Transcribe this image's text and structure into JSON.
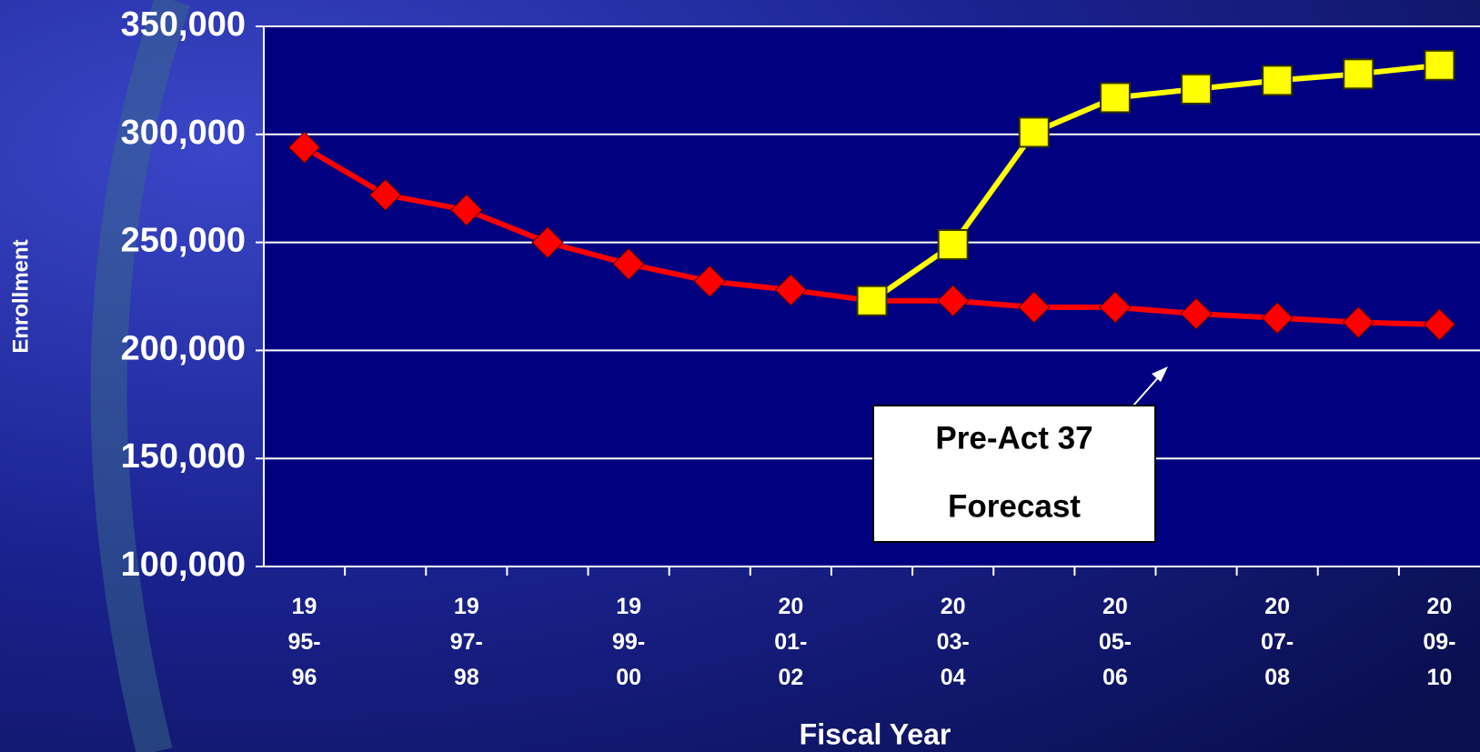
{
  "chart_data": {
    "type": "line",
    "y_label": "Enrollment",
    "x_label": "Fiscal Year",
    "categories": [
      "19\n95-\n96",
      null,
      "19\n97-\n98",
      null,
      "19\n99-\n00",
      null,
      "20\n01-\n02",
      null,
      "20\n03-\n04",
      null,
      "20\n05-\n06",
      null,
      "20\n07-\n08",
      null,
      "20\n09-\n10"
    ],
    "series": [
      {
        "color": "#ff0000",
        "marker": "diamond",
        "values": [
          294000,
          272000,
          265000,
          250000,
          240000,
          232000,
          228000,
          223000,
          223000,
          220000,
          220000,
          217000,
          215000,
          213000,
          212000
        ]
      },
      {
        "color": "#ffff00",
        "marker": "square",
        "values": [
          null,
          null,
          null,
          null,
          null,
          null,
          null,
          223000,
          249000,
          301000,
          317000,
          321000,
          325000,
          328000,
          332000
        ]
      }
    ],
    "ylim": [
      100000,
      350000
    ],
    "yticks": [
      {
        "value": 100000,
        "label": "100,000"
      },
      {
        "value": 150000,
        "label": "150,000"
      },
      {
        "value": 200000,
        "label": "200,000"
      },
      {
        "value": 250000,
        "label": "250,000"
      },
      {
        "value": 300000,
        "label": "300,000"
      },
      {
        "value": 350000,
        "label": "350,000"
      }
    ],
    "grid": true,
    "annotation": [
      "Pre-Act 37",
      "Forecast"
    ]
  }
}
